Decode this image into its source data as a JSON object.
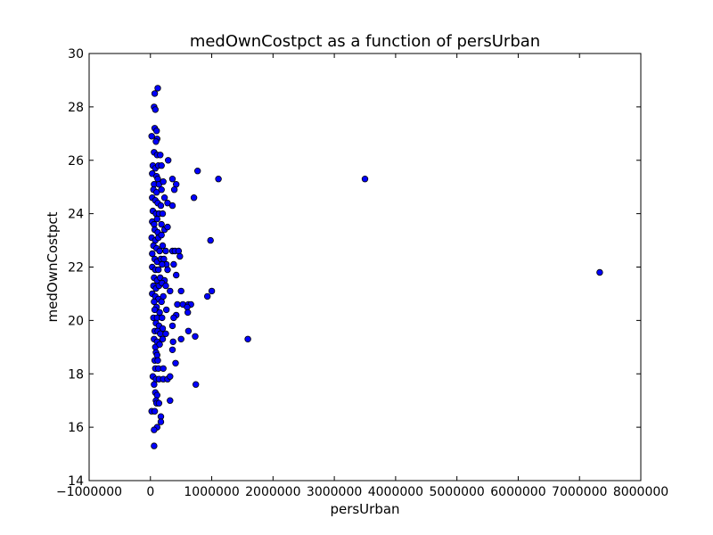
{
  "chart_data": {
    "type": "scatter",
    "title": "medOwnCostpct as a function of persUrban",
    "xlabel": "persUrban",
    "ylabel": "medOwnCostpct",
    "xlim": [
      -1000000,
      8000000
    ],
    "ylim": [
      14,
      30
    ],
    "xticks": [
      -1000000,
      0,
      1000000,
      2000000,
      3000000,
      4000000,
      5000000,
      6000000,
      7000000,
      8000000
    ],
    "xtick_labels": [
      "−1000000",
      "0",
      "1000000",
      "2000000",
      "3000000",
      "4000000",
      "5000000",
      "6000000",
      "7000000",
      "8000000"
    ],
    "yticks": [
      14,
      16,
      18,
      20,
      22,
      24,
      26,
      28,
      30
    ],
    "ytick_labels": [
      "14",
      "16",
      "18",
      "20",
      "22",
      "24",
      "26",
      "28",
      "30"
    ],
    "grid": false,
    "marker_color": "#0000ff",
    "marker_edge": "#000000",
    "points": [
      [
        20000,
        26.9
      ],
      [
        70000,
        28.5
      ],
      [
        120000,
        28.7
      ],
      [
        60000,
        28.0
      ],
      [
        80000,
        27.9
      ],
      [
        70000,
        27.2
      ],
      [
        100000,
        27.1
      ],
      [
        110000,
        26.8
      ],
      [
        90000,
        26.7
      ],
      [
        60000,
        26.3
      ],
      [
        110000,
        26.2
      ],
      [
        160000,
        26.2
      ],
      [
        290000,
        26.0
      ],
      [
        770000,
        25.6
      ],
      [
        40000,
        25.8
      ],
      [
        80000,
        25.7
      ],
      [
        130000,
        25.8
      ],
      [
        180000,
        25.8
      ],
      [
        30000,
        25.5
      ],
      [
        100000,
        25.4
      ],
      [
        120000,
        25.3
      ],
      [
        360000,
        25.3
      ],
      [
        1110000,
        25.3
      ],
      [
        3500000,
        25.3
      ],
      [
        60000,
        25.1
      ],
      [
        140000,
        25.1
      ],
      [
        210000,
        25.2
      ],
      [
        420000,
        25.1
      ],
      [
        50000,
        24.9
      ],
      [
        100000,
        24.8
      ],
      [
        180000,
        24.9
      ],
      [
        390000,
        24.9
      ],
      [
        30000,
        24.6
      ],
      [
        80000,
        24.5
      ],
      [
        230000,
        24.6
      ],
      [
        710000,
        24.6
      ],
      [
        120000,
        24.4
      ],
      [
        170000,
        24.3
      ],
      [
        280000,
        24.4
      ],
      [
        360000,
        24.3
      ],
      [
        40000,
        24.1
      ],
      [
        90000,
        24.0
      ],
      [
        140000,
        24.0
      ],
      [
        200000,
        24.0
      ],
      [
        30000,
        23.7
      ],
      [
        60000,
        23.6
      ],
      [
        110000,
        23.8
      ],
      [
        180000,
        23.6
      ],
      [
        70000,
        23.4
      ],
      [
        120000,
        23.3
      ],
      [
        230000,
        23.4
      ],
      [
        280000,
        23.5
      ],
      [
        20000,
        23.1
      ],
      [
        80000,
        23.0
      ],
      [
        130000,
        23.1
      ],
      [
        180000,
        23.2
      ],
      [
        980000,
        23.0
      ],
      [
        50000,
        22.8
      ],
      [
        100000,
        22.7
      ],
      [
        150000,
        22.6
      ],
      [
        200000,
        22.8
      ],
      [
        250000,
        22.6
      ],
      [
        360000,
        22.6
      ],
      [
        400000,
        22.6
      ],
      [
        460000,
        22.6
      ],
      [
        480000,
        22.4
      ],
      [
        30000,
        22.5
      ],
      [
        70000,
        22.3
      ],
      [
        110000,
        22.2
      ],
      [
        170000,
        22.3
      ],
      [
        220000,
        22.3
      ],
      [
        260000,
        22.1
      ],
      [
        30000,
        22.0
      ],
      [
        80000,
        21.9
      ],
      [
        130000,
        21.9
      ],
      [
        190000,
        22.1
      ],
      [
        280000,
        21.9
      ],
      [
        380000,
        22.1
      ],
      [
        7330000,
        21.8
      ],
      [
        60000,
        21.6
      ],
      [
        110000,
        21.5
      ],
      [
        160000,
        21.6
      ],
      [
        230000,
        21.5
      ],
      [
        420000,
        21.7
      ],
      [
        50000,
        21.3
      ],
      [
        90000,
        21.2
      ],
      [
        140000,
        21.3
      ],
      [
        190000,
        21.4
      ],
      [
        250000,
        21.3
      ],
      [
        320000,
        21.1
      ],
      [
        500000,
        21.1
      ],
      [
        1000000,
        21.1
      ],
      [
        30000,
        21.0
      ],
      [
        80000,
        20.9
      ],
      [
        130000,
        20.8
      ],
      [
        210000,
        20.9
      ],
      [
        930000,
        20.9
      ],
      [
        60000,
        20.7
      ],
      [
        100000,
        20.5
      ],
      [
        180000,
        20.7
      ],
      [
        440000,
        20.6
      ],
      [
        530000,
        20.6
      ],
      [
        620000,
        20.6
      ],
      [
        660000,
        20.6
      ],
      [
        600000,
        20.5
      ],
      [
        70000,
        20.4
      ],
      [
        150000,
        20.3
      ],
      [
        260000,
        20.4
      ],
      [
        610000,
        20.3
      ],
      [
        50000,
        20.1
      ],
      [
        110000,
        20.1
      ],
      [
        190000,
        20.1
      ],
      [
        420000,
        20.2
      ],
      [
        380000,
        20.1
      ],
      [
        90000,
        19.9
      ],
      [
        140000,
        19.8
      ],
      [
        200000,
        19.7
      ],
      [
        360000,
        19.8
      ],
      [
        70000,
        19.6
      ],
      [
        120000,
        19.6
      ],
      [
        160000,
        19.5
      ],
      [
        250000,
        19.5
      ],
      [
        620000,
        19.6
      ],
      [
        60000,
        19.3
      ],
      [
        110000,
        19.2
      ],
      [
        200000,
        19.3
      ],
      [
        370000,
        19.2
      ],
      [
        500000,
        19.3
      ],
      [
        730000,
        19.4
      ],
      [
        1590000,
        19.3
      ],
      [
        80000,
        19.0
      ],
      [
        150000,
        19.1
      ],
      [
        360000,
        18.9
      ],
      [
        90000,
        18.8
      ],
      [
        110000,
        18.7
      ],
      [
        70000,
        18.5
      ],
      [
        120000,
        18.5
      ],
      [
        410000,
        18.4
      ],
      [
        80000,
        18.2
      ],
      [
        130000,
        18.2
      ],
      [
        210000,
        18.2
      ],
      [
        40000,
        17.9
      ],
      [
        90000,
        17.8
      ],
      [
        140000,
        17.8
      ],
      [
        210000,
        17.8
      ],
      [
        280000,
        17.8
      ],
      [
        320000,
        17.9
      ],
      [
        60000,
        17.6
      ],
      [
        740000,
        17.6
      ],
      [
        80000,
        17.3
      ],
      [
        110000,
        17.2
      ],
      [
        90000,
        17.0
      ],
      [
        320000,
        17.0
      ],
      [
        100000,
        16.9
      ],
      [
        140000,
        16.9
      ],
      [
        20000,
        16.6
      ],
      [
        70000,
        16.6
      ],
      [
        170000,
        16.4
      ],
      [
        170000,
        16.2
      ],
      [
        110000,
        16.0
      ],
      [
        60000,
        15.9
      ],
      [
        60000,
        15.3
      ]
    ]
  }
}
